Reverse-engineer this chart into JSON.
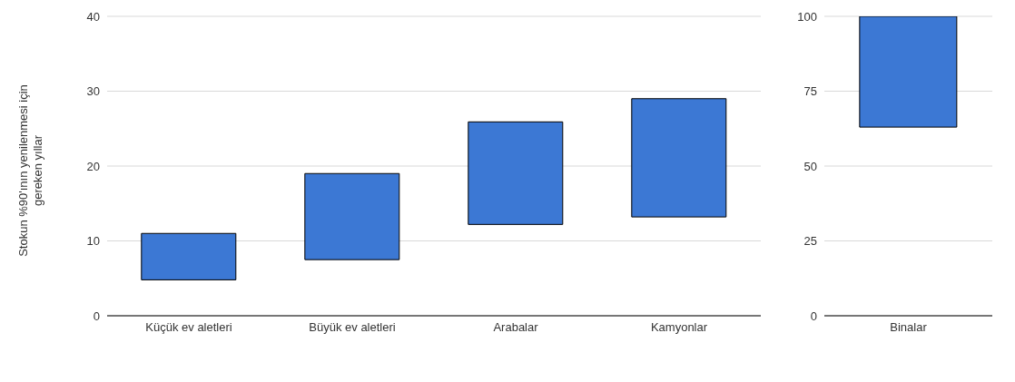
{
  "chart_data": [
    {
      "type": "bar",
      "ylabel": "Stokun %90'ının yenilenmesi için gereken yıllar",
      "categories": [
        "Küçük ev aletleri",
        "Büyük ev aletleri",
        "Arabalar",
        "Kamyonlar"
      ],
      "base": [
        4.8,
        7.5,
        12.2,
        13.2
      ],
      "values": [
        6.2,
        11.5,
        13.7,
        15.8
      ],
      "color": "#3c78d4",
      "ylim": [
        0,
        40
      ],
      "yticks": [
        0,
        10,
        20,
        30,
        40
      ],
      "grid": "y",
      "legend": false
    },
    {
      "type": "bar",
      "categories": [
        "Binalar"
      ],
      "base": [
        63
      ],
      "values": [
        37
      ],
      "color": "#3c78d4",
      "ylim": [
        0,
        100
      ],
      "yticks": [
        0,
        25,
        50,
        75,
        100
      ],
      "grid": "y",
      "legend": false
    }
  ]
}
